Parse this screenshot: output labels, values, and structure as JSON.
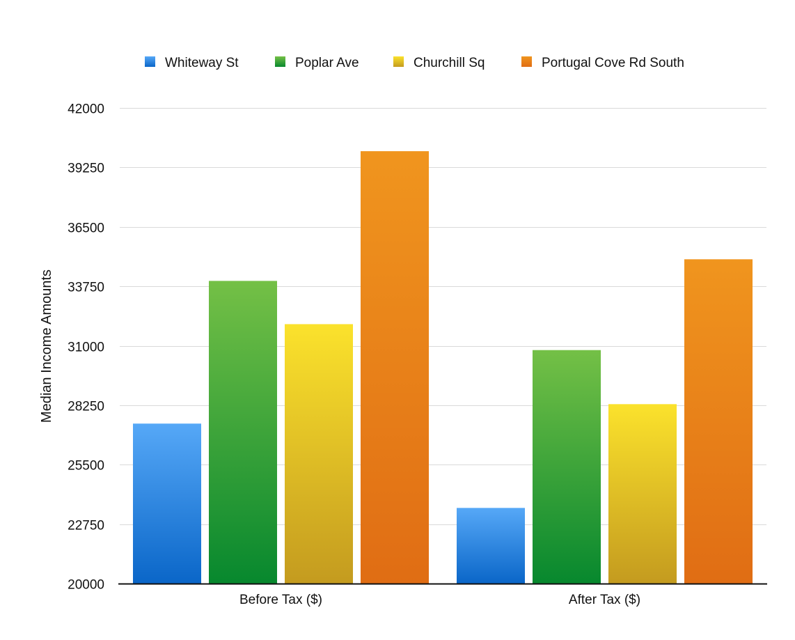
{
  "chart_data": {
    "type": "bar",
    "title": "",
    "xlabel": "",
    "ylabel": "Median Income Amounts",
    "ylim": [
      20000,
      42000
    ],
    "yticks": [
      20000,
      22750,
      25500,
      28250,
      31000,
      33750,
      36500,
      39250,
      42000
    ],
    "grid": true,
    "legend_position": "top",
    "categories": [
      "Before Tax ($)",
      "After Tax ($)"
    ],
    "series": [
      {
        "name": "Whiteway St",
        "values": [
          27400,
          23500
        ],
        "color_top": "#56a8f7",
        "color_bottom": "#0a66c8"
      },
      {
        "name": "Poplar Ave",
        "values": [
          34000,
          30800
        ],
        "color_top": "#74c046",
        "color_bottom": "#07882e"
      },
      {
        "name": "Churchill Sq",
        "values": [
          32000,
          28300
        ],
        "color_top": "#fbe22c",
        "color_bottom": "#c49b1f"
      },
      {
        "name": "Portugal Cove Rd South",
        "values": [
          40000,
          35000
        ],
        "color_top": "#f0951e",
        "color_bottom": "#e06d14"
      }
    ]
  }
}
